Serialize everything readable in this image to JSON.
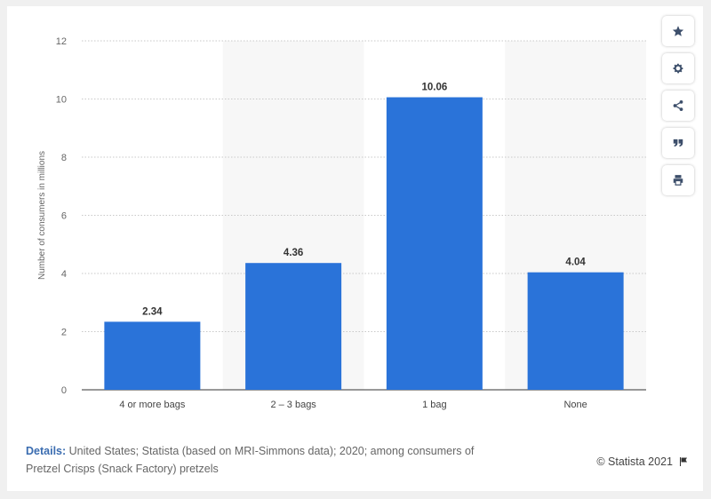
{
  "chart_data": {
    "type": "bar",
    "categories": [
      "4 or more bags",
      "2 – 3 bags",
      "1 bag",
      "None"
    ],
    "values": [
      2.34,
      4.36,
      10.06,
      4.04
    ],
    "value_labels": [
      "2.34",
      "4.36",
      "10.06",
      "4.04"
    ],
    "title": "",
    "xlabel": "",
    "ylabel": "Number of consumers in millions",
    "ylim": [
      0,
      12
    ],
    "yticks": [
      0,
      2,
      4,
      6,
      8,
      10,
      12
    ],
    "grid": true,
    "bar_color": "#2a73d9"
  },
  "toolbar": {
    "icons": [
      "star-icon",
      "gear-icon",
      "share-icon",
      "quote-icon",
      "print-icon"
    ]
  },
  "footer": {
    "details_label": "Details:",
    "details_text": " United States; Statista (based on MRI-Simmons data); 2020; among consumers of Pretzel Crisps (Snack Factory) pretzels",
    "copyright": "© Statista 2021"
  }
}
